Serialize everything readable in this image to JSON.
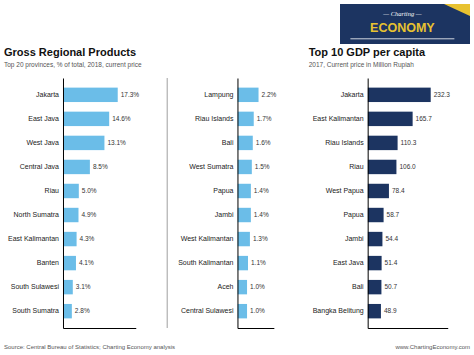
{
  "chart_data": [
    {
      "type": "bar",
      "orientation": "horizontal",
      "title": "Gross Regional Products",
      "subtitle": "Top 20 provinces, % of total, 2018, current price",
      "categories": [
        "Jakarta",
        "East Java",
        "West Java",
        "Central Java",
        "Riau",
        "North Sumatra",
        "East Kalimantan",
        "Banten",
        "South Sulawesi",
        "South Sumatra"
      ],
      "values": [
        17.3,
        14.6,
        13.1,
        8.5,
        5.0,
        4.9,
        4.3,
        4.1,
        3.1,
        2.8
      ],
      "value_labels": [
        "17.3%",
        "14.6%",
        "13.1%",
        "8.5%",
        "5.0%",
        "4.9%",
        "4.3%",
        "4.1%",
        "3.1%",
        "2.8%"
      ],
      "color": "#6BBDE8",
      "xlim": [
        0,
        23
      ],
      "data_labels": true,
      "tick_labels": "y",
      "grid": false,
      "annotations": [
        "Source: Central Bureau of Statistics; Charting Economy analysis",
        "www.ChartingEconomy.com"
      ]
    },
    {
      "type": "bar",
      "orientation": "horizontal",
      "categories": [
        "Lampung",
        "Riau Islands",
        "Bali",
        "West Sumatra",
        "Papua",
        "Jambi",
        "West Kalimantan",
        "South Kalimantan",
        "Aceh",
        "Central Sulawesi"
      ],
      "values": [
        2.2,
        1.7,
        1.6,
        1.5,
        1.4,
        1.4,
        1.3,
        1.1,
        1.0,
        1.0
      ],
      "value_labels": [
        "2.2%",
        "1.7%",
        "1.6%",
        "1.5%",
        "1.4%",
        "1.4%",
        "1.3%",
        "1.1%",
        "1.0%",
        "1.0%"
      ],
      "color": "#6BBDE8",
      "xlim": [
        0,
        3.8
      ],
      "data_labels": true,
      "tick_labels": "y",
      "grid": false
    },
    {
      "type": "bar",
      "orientation": "horizontal",
      "title": "Top 10 GDP per capita",
      "subtitle": "2017, Current price in Million Rupiah",
      "categories": [
        "Jakarta",
        "East Kalimantan",
        "Riau Islands",
        "Riau",
        "West Papua",
        "Papua",
        "Jambi",
        "East Java",
        "Bali",
        "Bangka Belitung"
      ],
      "values": [
        232.3,
        165.7,
        110.3,
        106.0,
        78.4,
        58.7,
        54.4,
        51.4,
        50.7,
        48.9
      ],
      "value_labels": [
        "232.3",
        "165.7",
        "110.3",
        "106.0",
        "78.4",
        "58.7",
        "54.4",
        "51.4",
        "50.7",
        "48.9"
      ],
      "color": "#1C3461",
      "xlim": [
        0,
        295
      ],
      "data_labels": true,
      "tick_labels": "y",
      "grid": false,
      "annotations": [
        "— Charting —",
        "ECONOMY"
      ]
    }
  ]
}
